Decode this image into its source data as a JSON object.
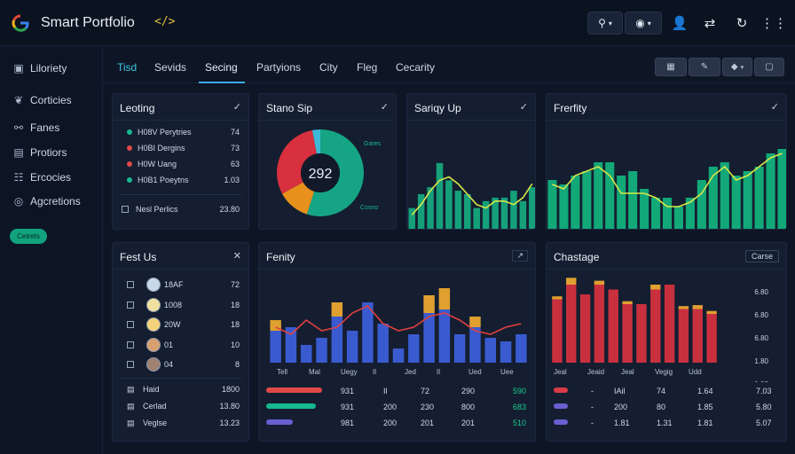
{
  "app": {
    "title": "Smart Portfolio",
    "code_glyph": "</>"
  },
  "toolbar": {
    "search_caret": "▾",
    "view_caret": "▾"
  },
  "sidebar": {
    "items": [
      {
        "label": "Liloriety",
        "icon": "briefcase-icon"
      },
      {
        "label": "Corticies",
        "icon": "leaf-icon"
      },
      {
        "label": "Fanes",
        "icon": "link-icon"
      },
      {
        "label": "Protiors",
        "icon": "document-icon"
      },
      {
        "label": "Ercocies",
        "icon": "users-icon"
      },
      {
        "label": "Agcretions",
        "icon": "compass-icon"
      }
    ],
    "pill_label": "Cetrets"
  },
  "tabs": {
    "items": [
      {
        "label": "Tisd"
      },
      {
        "label": "Sevids"
      },
      {
        "label": "Secing"
      },
      {
        "label": "Partyions"
      },
      {
        "label": "City"
      },
      {
        "label": "Fleg"
      },
      {
        "label": "Cecarity"
      }
    ],
    "active_index": 2
  },
  "panels": {
    "leading": {
      "title": "Leoting",
      "rows": [
        {
          "name": "H08V Perytries",
          "value": "74",
          "color": "#18b890"
        },
        {
          "name": "H0BI Dergins",
          "value": "73",
          "color": "#e04848"
        },
        {
          "name": "H0W Uang",
          "value": "63",
          "color": "#e04848"
        },
        {
          "name": "H0B1 Poeytns",
          "value": "1.03",
          "color": "#18b890"
        }
      ],
      "footer": {
        "name": "Nesl Perlics",
        "value": "23.80"
      }
    },
    "donut": {
      "title": "Stano Sip",
      "center": "292",
      "label_top": "Gares",
      "label_bottom": "Cosno",
      "segments": [
        {
          "value": 55,
          "color": "#15a585"
        },
        {
          "value": 12,
          "color": "#e8901c"
        },
        {
          "value": 30,
          "color": "#d8303e"
        },
        {
          "value": 3,
          "color": "#3fb8d8"
        }
      ]
    },
    "sparkline": {
      "title": "Sariqy Up",
      "bars": [
        0.3,
        0.5,
        0.6,
        0.95,
        0.7,
        0.55,
        0.5,
        0.3,
        0.4,
        0.45,
        0.45,
        0.55,
        0.4,
        0.6
      ],
      "line": [
        0.2,
        0.35,
        0.55,
        0.7,
        0.75,
        0.65,
        0.5,
        0.35,
        0.3,
        0.4,
        0.4,
        0.35,
        0.45,
        0.65
      ]
    },
    "frequency": {
      "title": "Frerfity",
      "bars": [
        0.55,
        0.5,
        0.6,
        0.65,
        0.75,
        0.75,
        0.6,
        0.65,
        0.45,
        0.35,
        0.35,
        0.25,
        0.35,
        0.55,
        0.7,
        0.75,
        0.6,
        0.65,
        0.7,
        0.85,
        0.9
      ],
      "line": [
        0.5,
        0.45,
        0.6,
        0.65,
        0.7,
        0.6,
        0.4,
        0.4,
        0.4,
        0.35,
        0.25,
        0.25,
        0.3,
        0.4,
        0.6,
        0.7,
        0.55,
        0.6,
        0.7,
        0.8,
        0.85
      ]
    },
    "fest": {
      "title": "Fest Us",
      "rows": [
        {
          "name": "18AF",
          "value": "72"
        },
        {
          "name": "1008",
          "value": "18"
        },
        {
          "name": "20W",
          "value": "18"
        },
        {
          "name": "01",
          "value": "10"
        },
        {
          "name": "04",
          "value": "8"
        }
      ],
      "summary": [
        {
          "name": "Haid",
          "value": "1800"
        },
        {
          "name": "Cerlad",
          "value": "13.80"
        },
        {
          "name": "Veglse",
          "value": "13.23"
        }
      ]
    },
    "fenity": {
      "title": "Fenity",
      "x_labels": [
        "Tell",
        "Mal",
        "Uegy",
        "Il",
        "Jed",
        "Il",
        "Ued",
        "Uee"
      ],
      "bars": [
        0.45,
        0.5,
        0.25,
        0.35,
        0.65,
        0.45,
        0.85,
        0.55,
        0.2,
        0.4,
        0.7,
        0.75,
        0.4,
        0.5,
        0.35,
        0.3,
        0.4
      ],
      "bars_top": [
        0.15,
        0.0,
        0.0,
        0.0,
        0.2,
        0.0,
        0.0,
        0.0,
        0.0,
        0.0,
        0.25,
        0.3,
        0.0,
        0.15,
        0.0,
        0.0,
        0.0
      ],
      "line": [
        0.5,
        0.4,
        0.6,
        0.45,
        0.5,
        0.7,
        0.8,
        0.55,
        0.45,
        0.5,
        0.65,
        0.7,
        0.6,
        0.45,
        0.4,
        0.5,
        0.55
      ],
      "legend": [
        {
          "color": "#e04848",
          "fill": 0.95,
          "v1": "931",
          "v2": "Il",
          "v3": "72",
          "v4": "290",
          "v5": "590"
        },
        {
          "color": "#18b890",
          "fill": 0.85,
          "v1": "931",
          "v2": "200",
          "v3": "230",
          "v4": "800",
          "v5": "683"
        },
        {
          "color": "#6a5ed0",
          "fill": 0.45,
          "v1": "981",
          "v2": "200",
          "v3": "201",
          "v4": "201",
          "v5": "510"
        }
      ]
    },
    "chastage": {
      "title": "Chastage",
      "button": "Carse",
      "y_labels": [
        "6.80",
        "6.80",
        "6.80",
        "1.80",
        "1.00"
      ],
      "x_labels": [
        "Jeal",
        "Jeaid",
        "Jeal",
        "Vegig",
        "Udd"
      ],
      "bars": [
        0.65,
        0.8,
        0.7,
        0.8,
        0.75,
        0.6,
        0.6,
        0.75,
        0.8,
        0.55,
        0.55,
        0.5
      ],
      "bars_top": [
        0.03,
        0.07,
        0.0,
        0.04,
        0.0,
        0.03,
        0.0,
        0.05,
        0.0,
        0.03,
        0.04,
        0.03
      ],
      "legend": [
        {
          "color": "#d83a46",
          "v1": "-",
          "v2": "IAil",
          "v3": "74",
          "v4": "1.64",
          "v5": "7.03"
        },
        {
          "color": "#6a5ed0",
          "v1": "-",
          "v2": "200",
          "v3": "80",
          "v4": "1.85",
          "v5": "5.80"
        },
        {
          "color": "#6a5ed0",
          "v1": "-",
          "v2": "1.81",
          "v3": "1.31",
          "v4": "1.81",
          "v5": "5.07"
        }
      ]
    }
  }
}
